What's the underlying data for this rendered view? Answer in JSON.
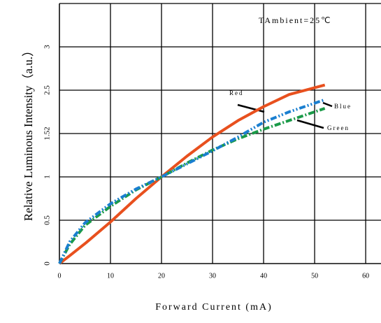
{
  "chart_data": {
    "type": "line",
    "x_label": "Forward Current (mA)",
    "y_label": "Relative Luminous Intensity（a.u.）",
    "annotation": "TAmbient=25℃",
    "x": [
      0,
      2,
      5,
      10,
      15,
      20,
      25,
      30,
      35,
      40,
      45,
      52
    ],
    "series": [
      {
        "name": "Red",
        "color": "#e8501e",
        "values": [
          0,
          0.09,
          0.23,
          0.48,
          0.75,
          1.0,
          1.24,
          1.46,
          1.65,
          1.81,
          1.95,
          2.06
        ]
      },
      {
        "name": "Green",
        "color": "#1a9a48",
        "values": [
          0,
          0.22,
          0.44,
          0.66,
          0.85,
          1.0,
          1.16,
          1.31,
          1.44,
          1.55,
          1.65,
          1.79
        ]
      },
      {
        "name": "Blue",
        "color": "#1a7fd0",
        "values": [
          0,
          0.25,
          0.47,
          0.69,
          0.86,
          1.0,
          1.15,
          1.3,
          1.46,
          1.63,
          1.75,
          1.89
        ]
      }
    ],
    "xlim": [
      0,
      63
    ],
    "xticks": [
      0,
      10,
      20,
      30,
      40,
      50,
      60
    ],
    "ylim": [
      0,
      3
    ],
    "yticks": [
      0,
      0.5,
      1,
      {
        "value": 1.5,
        "label": "1.52"
      },
      {
        "value": 2,
        "label": "2.5"
      },
      {
        "value": 2.5,
        "label": "3"
      }
    ],
    "grid": true
  }
}
